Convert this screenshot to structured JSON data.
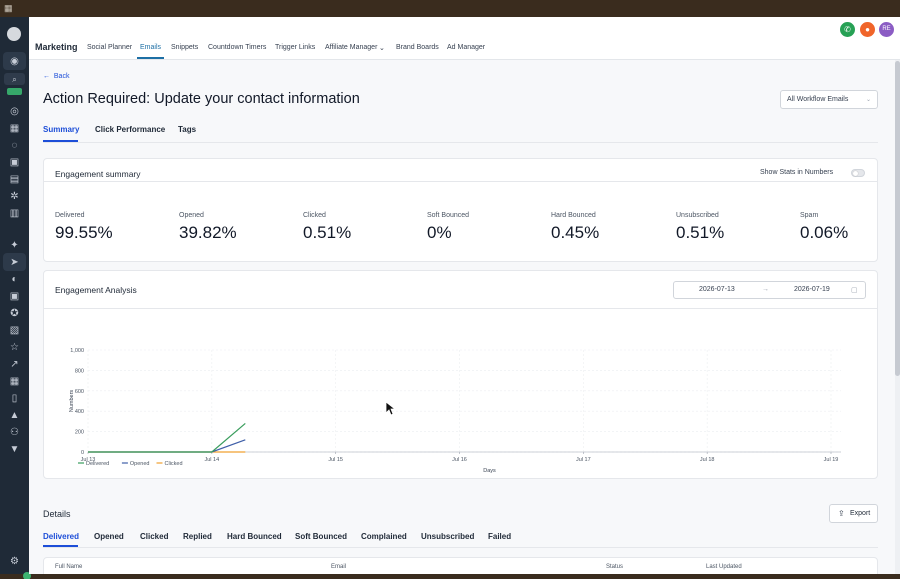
{
  "topnav": {
    "brand": "Marketing",
    "items": [
      "Social Planner",
      "Emails",
      "Snippets",
      "Countdown Timers",
      "Trigger Links",
      "Affiliate Manager",
      "Brand Boards",
      "Ad Manager"
    ],
    "avatar": "RE",
    "colors": {
      "phone": "#27a155",
      "notify": "#f0652a",
      "avatar": "#8b5cc4"
    }
  },
  "page": {
    "back": "Back",
    "title": "Action Required: Update your contact information",
    "workflow_select": "All Workflow Emails",
    "tabs": [
      "Summary",
      "Click Performance",
      "Tags"
    ]
  },
  "summary": {
    "title": "Engagement summary",
    "toggle_label": "Show Stats in Numbers",
    "stats": [
      {
        "label": "Delivered",
        "value": "99.55%"
      },
      {
        "label": "Opened",
        "value": "39.82%"
      },
      {
        "label": "Clicked",
        "value": "0.51%"
      },
      {
        "label": "Soft Bounced",
        "value": "0%"
      },
      {
        "label": "Hard Bounced",
        "value": "0.45%"
      },
      {
        "label": "Unsubscribed",
        "value": "0.51%"
      },
      {
        "label": "Spam",
        "value": "0.06%"
      }
    ]
  },
  "analysis": {
    "title": "Engagement Analysis",
    "date_from": "2026-07-13",
    "date_to": "2026-07-19",
    "arrow": "→"
  },
  "chart_data": {
    "type": "line",
    "categories": [
      "Jul 13",
      "Jul 14",
      "Jul 15",
      "Jul 16",
      "Jul 17",
      "Jul 18",
      "Jul 19"
    ],
    "ylabel": "Numbers",
    "xlabel": "Days",
    "ylim": [
      0,
      1000
    ],
    "yticks": [
      "0",
      "200",
      "400",
      "600",
      "800",
      "1,000"
    ],
    "x_grid": [
      0,
      1,
      2,
      3,
      4,
      5,
      6
    ],
    "grid": true,
    "legend_position": "bottom-left",
    "series": [
      {
        "name": "Delivered",
        "color": "#3a9d5d",
        "points": [
          [
            0,
            0
          ],
          [
            1,
            0
          ],
          [
            1.27,
            280
          ]
        ]
      },
      {
        "name": "Opened",
        "color": "#3f5fa8",
        "points": [
          [
            0,
            0
          ],
          [
            1,
            0
          ],
          [
            1.27,
            120
          ]
        ]
      },
      {
        "name": "Clicked",
        "color": "#f0a030",
        "points": [
          [
            0,
            0
          ],
          [
            1,
            0
          ],
          [
            1.27,
            0
          ]
        ]
      }
    ]
  },
  "details": {
    "title": "Details",
    "export": "Export",
    "tabs": [
      "Delivered",
      "Opened",
      "Clicked",
      "Replied",
      "Hard Bounced",
      "Soft Bounced",
      "Complained",
      "Unsubscribed",
      "Failed"
    ],
    "columns": [
      "Full Name",
      "Email",
      "Status",
      "Last Updated"
    ]
  }
}
